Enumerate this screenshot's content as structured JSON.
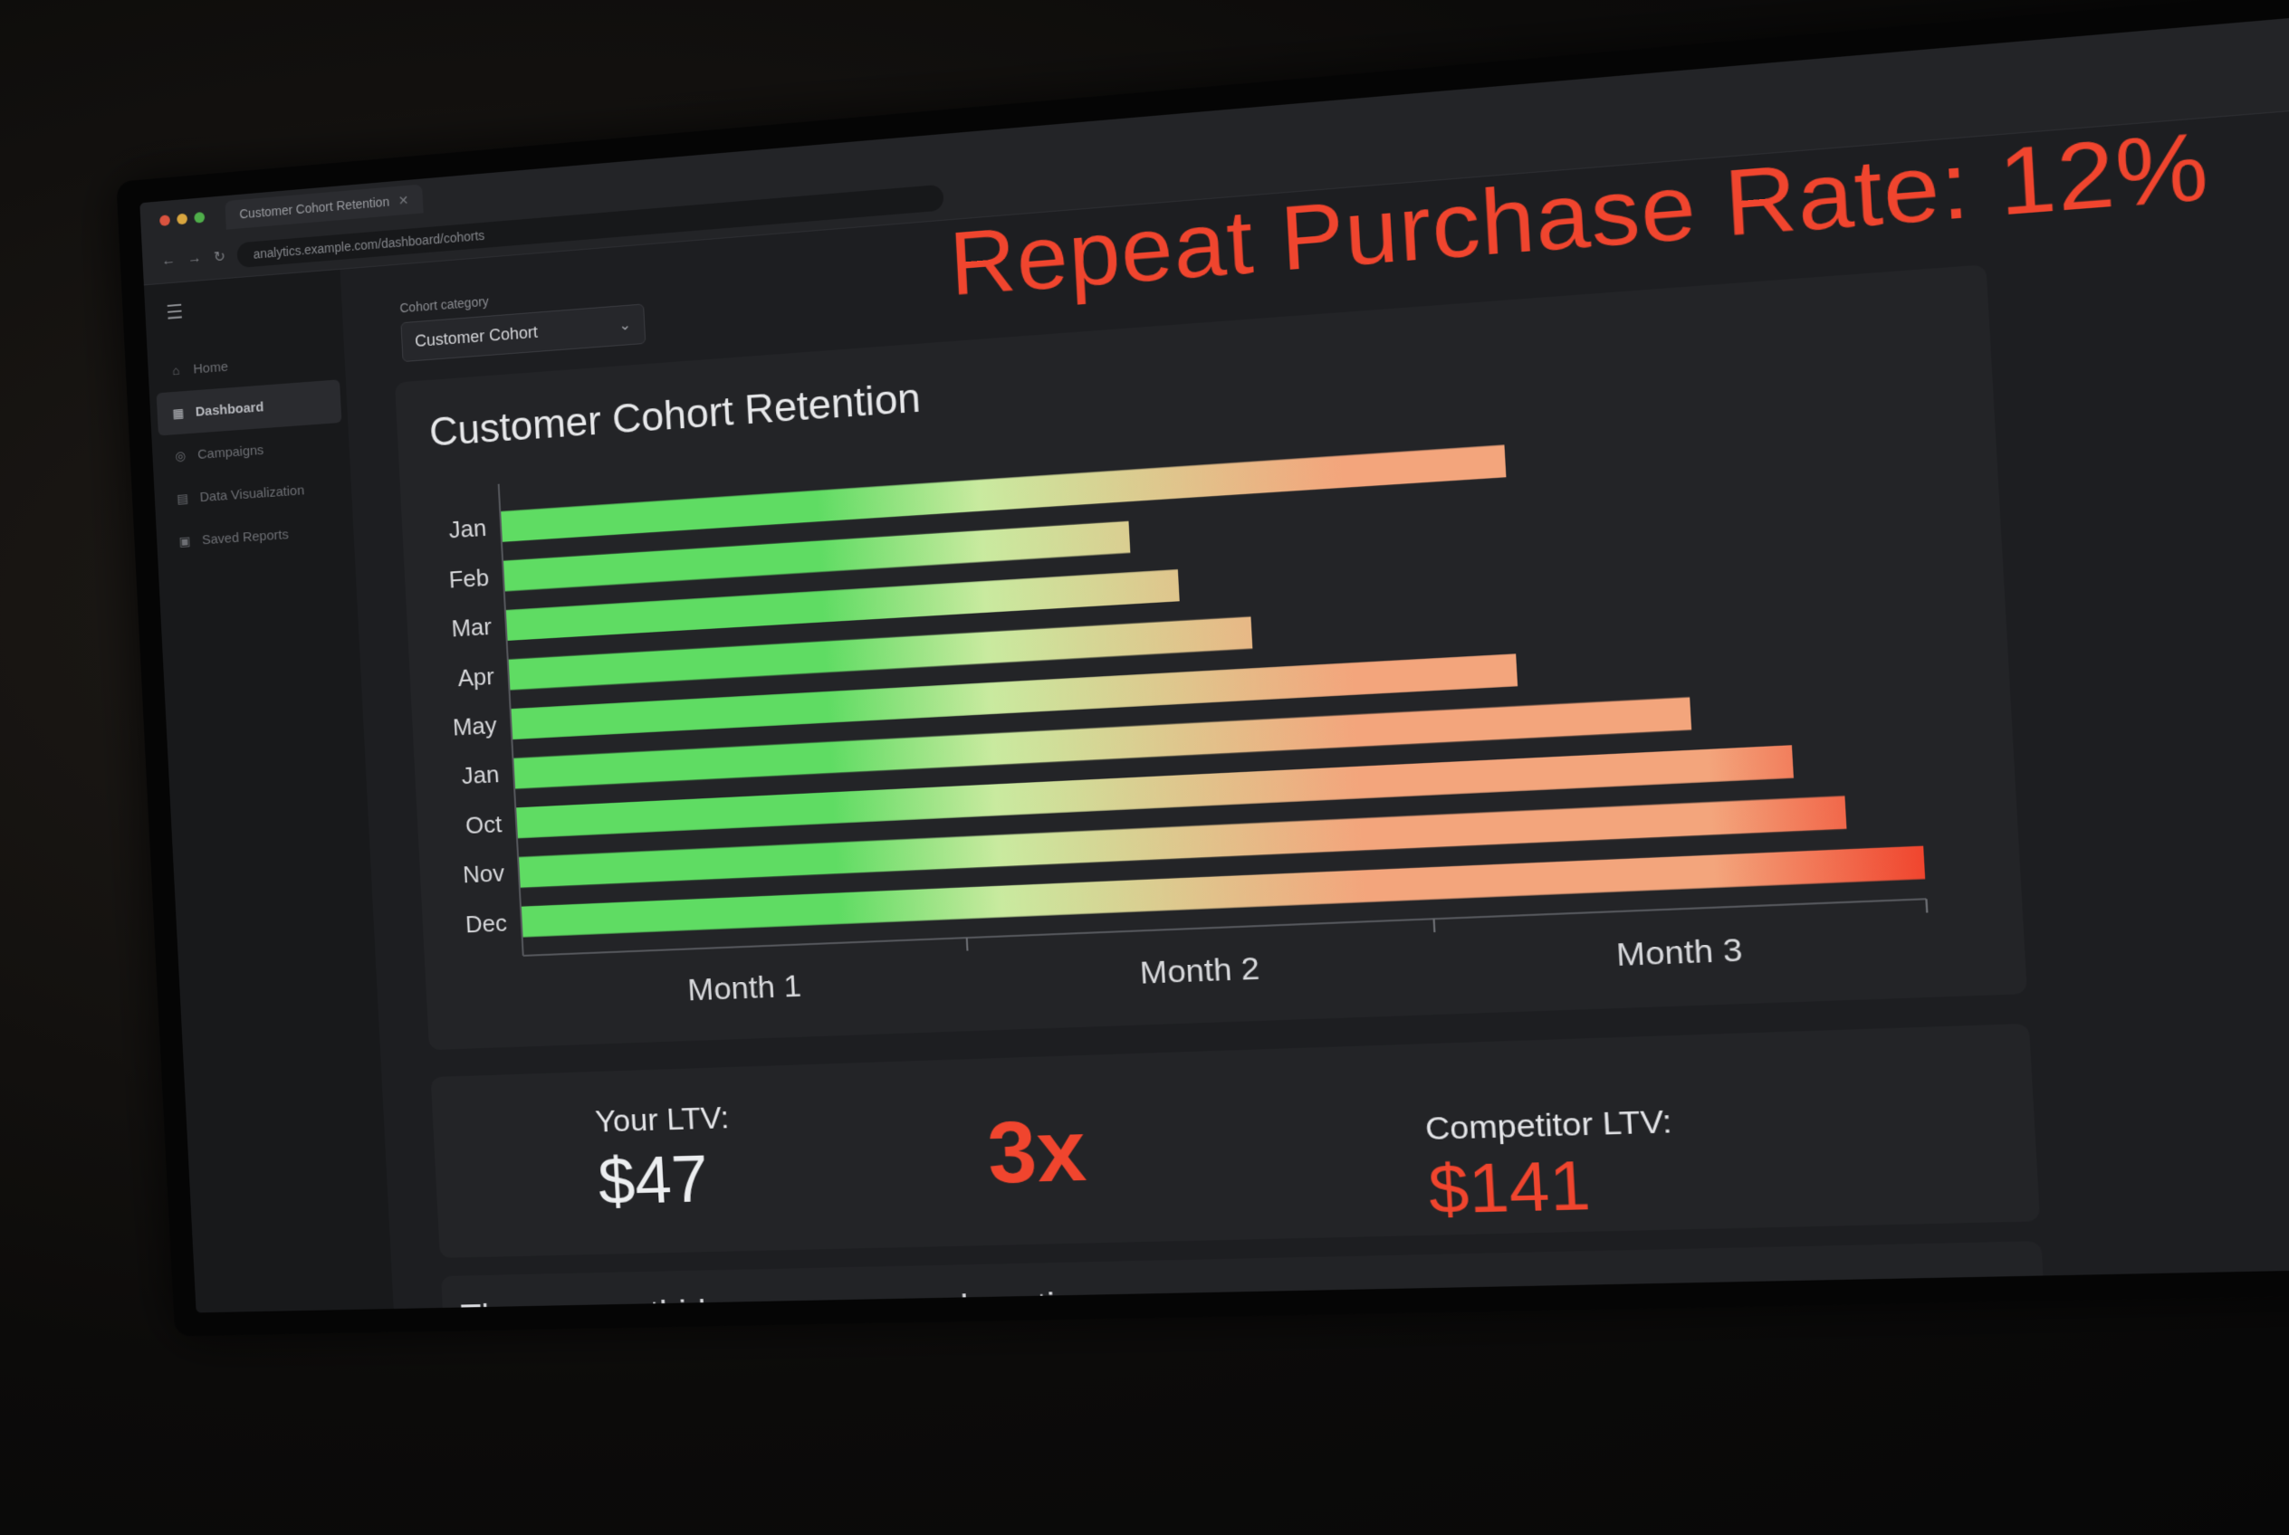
{
  "browser": {
    "tab_title": "Customer Cohort Retention",
    "address": "analytics.example.com/dashboard/cohorts"
  },
  "sidebar": {
    "items": [
      {
        "label": "Home",
        "icon": "home-icon",
        "active": false
      },
      {
        "label": "Dashboard",
        "icon": "dashboard-icon",
        "active": true
      },
      {
        "label": "Campaigns",
        "icon": "campaign-icon",
        "active": false
      },
      {
        "label": "Data Visualization",
        "icon": "chart-icon",
        "active": false
      },
      {
        "label": "Saved Reports",
        "icon": "report-icon",
        "active": false
      }
    ]
  },
  "filter": {
    "label": "Cohort category",
    "selected": "Customer Cohort"
  },
  "headline": "Repeat Purchase Rate: 12%",
  "chart_data": {
    "type": "bar",
    "orientation": "horizontal",
    "title": "Customer Cohort Retention",
    "categories": [
      "Jan",
      "Feb",
      "Mar",
      "Apr",
      "May",
      "Jan",
      "Oct",
      "Nov",
      "Dec"
    ],
    "values": [
      2.2,
      1.4,
      1.5,
      1.65,
      2.2,
      2.55,
      2.75,
      2.85,
      3.0
    ],
    "x_ticks": [
      "Month 1",
      "Month 2",
      "Month 3"
    ],
    "xlim": [
      0,
      3
    ],
    "colors": {
      "start": "#5fdc63",
      "mid": "#c9ea9f",
      "warm": "#f3a57c",
      "end": "#f0452e"
    },
    "grid": false
  },
  "ltv": {
    "yours_label": "Your LTV:",
    "yours_value": "$47",
    "ratio": "3x",
    "competitor_label": "Competitor LTV:",
    "competitor_value": "$141"
  },
  "footer_note": "They can outbid you on every ad auction."
}
